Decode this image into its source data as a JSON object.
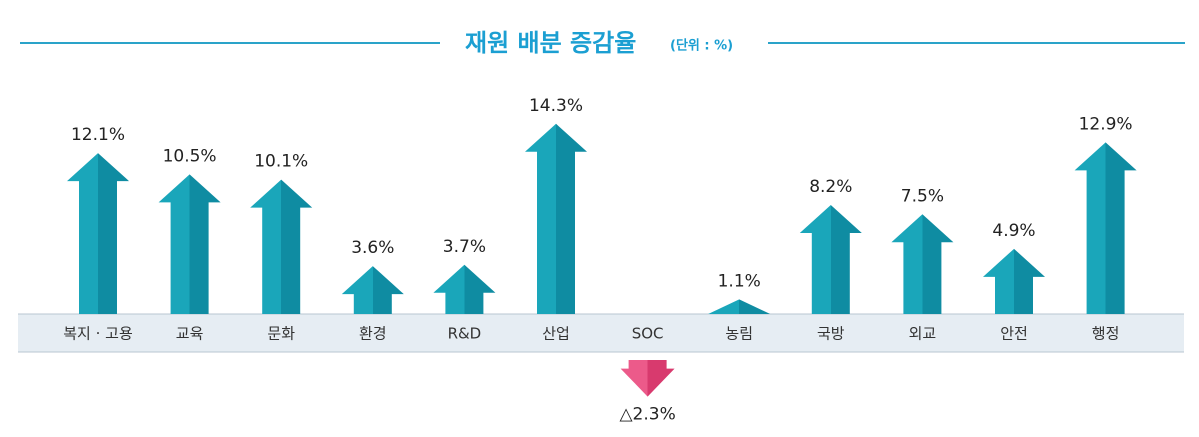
{
  "chart_data": {
    "type": "arrow-bar",
    "title": "재원 배분 증감율",
    "subtitle": "(단위 : %)",
    "categories": [
      "복지 · 고용",
      "교육",
      "문화",
      "환경",
      "R&D",
      "산업",
      "SOC",
      "농림",
      "국방",
      "외교",
      "안전",
      "행정"
    ],
    "values": [
      12.1,
      10.5,
      10.1,
      3.6,
      3.7,
      14.3,
      -2.3,
      1.1,
      8.2,
      7.5,
      4.9,
      12.9
    ],
    "value_labels": [
      "12.1%",
      "10.5%",
      "10.1%",
      "3.6%",
      "3.7%",
      "14.3%",
      "△2.3%",
      "1.1%",
      "8.2%",
      "7.5%",
      "4.9%",
      "12.9%"
    ],
    "color": "#1aa6ba",
    "negative_color": "#e5457b"
  }
}
